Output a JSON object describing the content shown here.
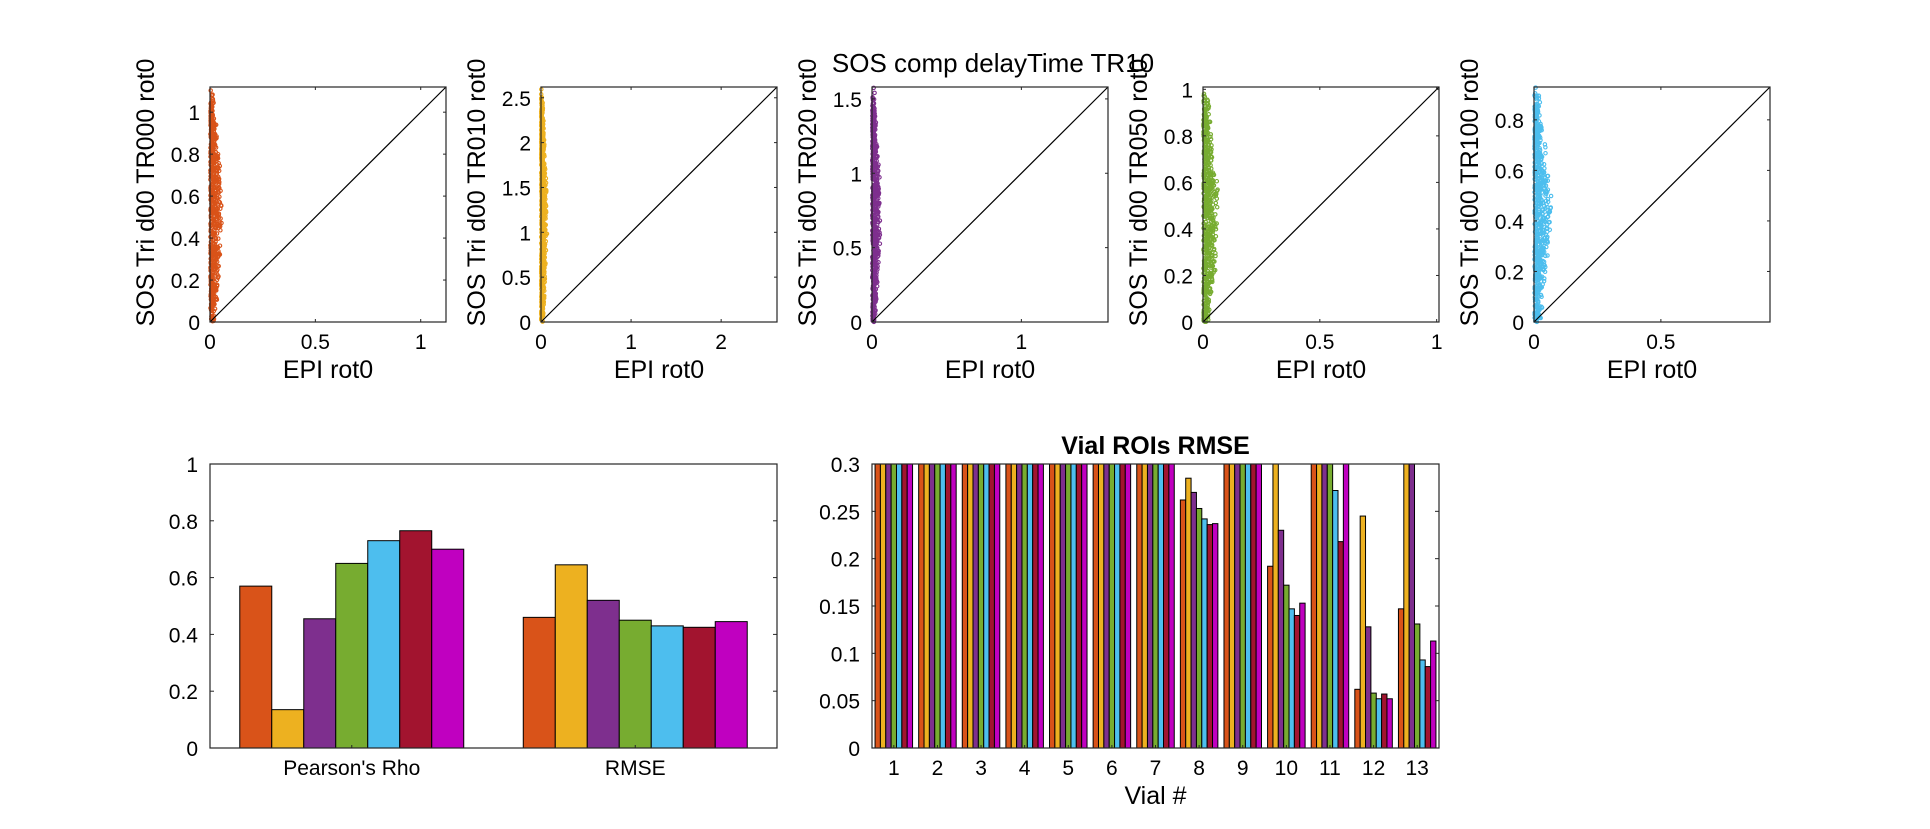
{
  "figure_title": "SOS comp delayTime TR10",
  "colors": [
    "#D95319",
    "#EDB120",
    "#7E2F8E",
    "#77AC30",
    "#4DBEEE",
    "#A2142F",
    "#C000C0"
  ],
  "chart_data": [
    {
      "type": "scatter",
      "xlabel": "EPI rot0",
      "ylabel": "SOS Tri d00 TR000 rot0",
      "xlim": [
        0,
        1.12
      ],
      "ylim": [
        0,
        1.12
      ],
      "xticks": [
        0,
        0.5,
        1
      ],
      "yticks": [
        0,
        0.2,
        0.4,
        0.6,
        0.8,
        1
      ],
      "xtick_labels": [
        "0",
        "0.5",
        "1"
      ],
      "ytick_labels": [
        "0",
        "0.2",
        "0.4",
        "0.6",
        "0.8",
        "1"
      ],
      "color": "#D95319",
      "identity_line": true,
      "cluster": {
        "x_range": [
          0.0,
          0.06
        ],
        "y_range": [
          0.0,
          1.12
        ]
      }
    },
    {
      "type": "scatter",
      "xlabel": "EPI rot0",
      "ylabel": "SOS Tri d00 TR010 rot0",
      "xlim": [
        0,
        2.62
      ],
      "ylim": [
        0,
        2.62
      ],
      "xticks": [
        0,
        1,
        2
      ],
      "yticks": [
        0,
        0.5,
        1,
        1.5,
        2,
        2.5
      ],
      "xtick_labels": [
        "0",
        "1",
        "2"
      ],
      "ytick_labels": [
        "0",
        "0.5",
        "1",
        "1.5",
        "2",
        "2.5"
      ],
      "color": "#EDB120",
      "identity_line": true,
      "cluster": {
        "x_range": [
          0.0,
          0.07
        ],
        "y_range": [
          0.0,
          2.62
        ]
      }
    },
    {
      "type": "scatter",
      "xlabel": "EPI rot0",
      "ylabel": "SOS Tri d00 TR020 rot0",
      "xlim": [
        0,
        1.58
      ],
      "ylim": [
        0,
        1.58
      ],
      "xticks": [
        0,
        1
      ],
      "yticks": [
        0,
        0.5,
        1,
        1.5
      ],
      "xtick_labels": [
        "0",
        "1"
      ],
      "ytick_labels": [
        "0",
        "0.5",
        "1",
        "1.5"
      ],
      "color": "#7E2F8E",
      "identity_line": true,
      "cluster": {
        "x_range": [
          0.0,
          0.06
        ],
        "y_range": [
          0.0,
          1.58
        ]
      }
    },
    {
      "type": "scatter",
      "xlabel": "EPI rot0",
      "ylabel": "SOS Tri d00 TR050 rot0",
      "xlim": [
        0,
        1.01
      ],
      "ylim": [
        0,
        1.01
      ],
      "xticks": [
        0,
        0.5,
        1
      ],
      "yticks": [
        0,
        0.2,
        0.4,
        0.6,
        0.8,
        1
      ],
      "xtick_labels": [
        "0",
        "0.5",
        "1"
      ],
      "ytick_labels": [
        "0",
        "0.2",
        "0.4",
        "0.6",
        "0.8",
        "1"
      ],
      "color": "#77AC30",
      "identity_line": true,
      "cluster": {
        "x_range": [
          0.0,
          0.07
        ],
        "y_range": [
          0.0,
          1.0
        ]
      }
    },
    {
      "type": "scatter",
      "xlabel": "EPI rot0",
      "ylabel": "SOS Tri d00 TR100 rot0",
      "xlim": [
        0,
        0.93
      ],
      "ylim": [
        0,
        0.93
      ],
      "xticks": [
        0,
        0.5
      ],
      "yticks": [
        0,
        0.2,
        0.4,
        0.6,
        0.8
      ],
      "xtick_labels": [
        "0",
        "0.5"
      ],
      "ytick_labels": [
        "0",
        "0.2",
        "0.4",
        "0.6",
        "0.8"
      ],
      "color": "#4DBEEE",
      "identity_line": true,
      "cluster": {
        "x_range": [
          0.0,
          0.07
        ],
        "y_range": [
          0.0,
          0.93
        ]
      }
    },
    {
      "type": "bar",
      "title": "",
      "xlabel": "",
      "ylabel": "",
      "categories": [
        "Pearson's Rho",
        "RMSE"
      ],
      "ylim": [
        0,
        1
      ],
      "yticks": [
        0,
        0.2,
        0.4,
        0.6,
        0.8,
        1
      ],
      "ytick_labels": [
        "0",
        "0.2",
        "0.4",
        "0.6",
        "0.8",
        "1"
      ],
      "series": [
        {
          "values": [
            0.57,
            0.46
          ]
        },
        {
          "values": [
            0.135,
            0.645
          ]
        },
        {
          "values": [
            0.455,
            0.52
          ]
        },
        {
          "values": [
            0.65,
            0.45
          ]
        },
        {
          "values": [
            0.73,
            0.43
          ]
        },
        {
          "values": [
            0.765,
            0.425
          ]
        },
        {
          "values": [
            0.7,
            0.445
          ]
        }
      ]
    },
    {
      "type": "bar",
      "title": "Vial ROIs RMSE",
      "xlabel": "Vial #",
      "ylabel": "",
      "categories": [
        "1",
        "2",
        "3",
        "4",
        "5",
        "6",
        "7",
        "8",
        "9",
        "10",
        "11",
        "12",
        "13"
      ],
      "ylim": [
        0,
        0.3
      ],
      "yticks": [
        0,
        0.05,
        0.1,
        0.15,
        0.2,
        0.25,
        0.3
      ],
      "ytick_labels": [
        "0",
        "0.05",
        "0.1",
        "0.15",
        "0.2",
        "0.25",
        "0.3"
      ],
      "series": [
        {
          "values": [
            0.3,
            0.3,
            0.3,
            0.3,
            0.3,
            0.3,
            0.3,
            0.262,
            0.3,
            0.192,
            0.3,
            0.062,
            0.147
          ]
        },
        {
          "values": [
            0.3,
            0.3,
            0.3,
            0.3,
            0.3,
            0.3,
            0.3,
            0.285,
            0.3,
            0.3,
            0.3,
            0.245,
            0.3
          ]
        },
        {
          "values": [
            0.3,
            0.3,
            0.3,
            0.3,
            0.3,
            0.3,
            0.3,
            0.27,
            0.3,
            0.23,
            0.3,
            0.128,
            0.3
          ]
        },
        {
          "values": [
            0.3,
            0.3,
            0.3,
            0.3,
            0.3,
            0.3,
            0.3,
            0.253,
            0.3,
            0.172,
            0.3,
            0.058,
            0.131
          ]
        },
        {
          "values": [
            0.3,
            0.3,
            0.3,
            0.3,
            0.3,
            0.3,
            0.3,
            0.242,
            0.3,
            0.147,
            0.272,
            0.052,
            0.093
          ]
        },
        {
          "values": [
            0.3,
            0.3,
            0.3,
            0.3,
            0.3,
            0.3,
            0.3,
            0.236,
            0.3,
            0.14,
            0.218,
            0.057,
            0.086
          ]
        },
        {
          "values": [
            0.3,
            0.3,
            0.3,
            0.3,
            0.3,
            0.3,
            0.3,
            0.237,
            0.3,
            0.153,
            0.3,
            0.052,
            0.113
          ]
        }
      ]
    }
  ]
}
